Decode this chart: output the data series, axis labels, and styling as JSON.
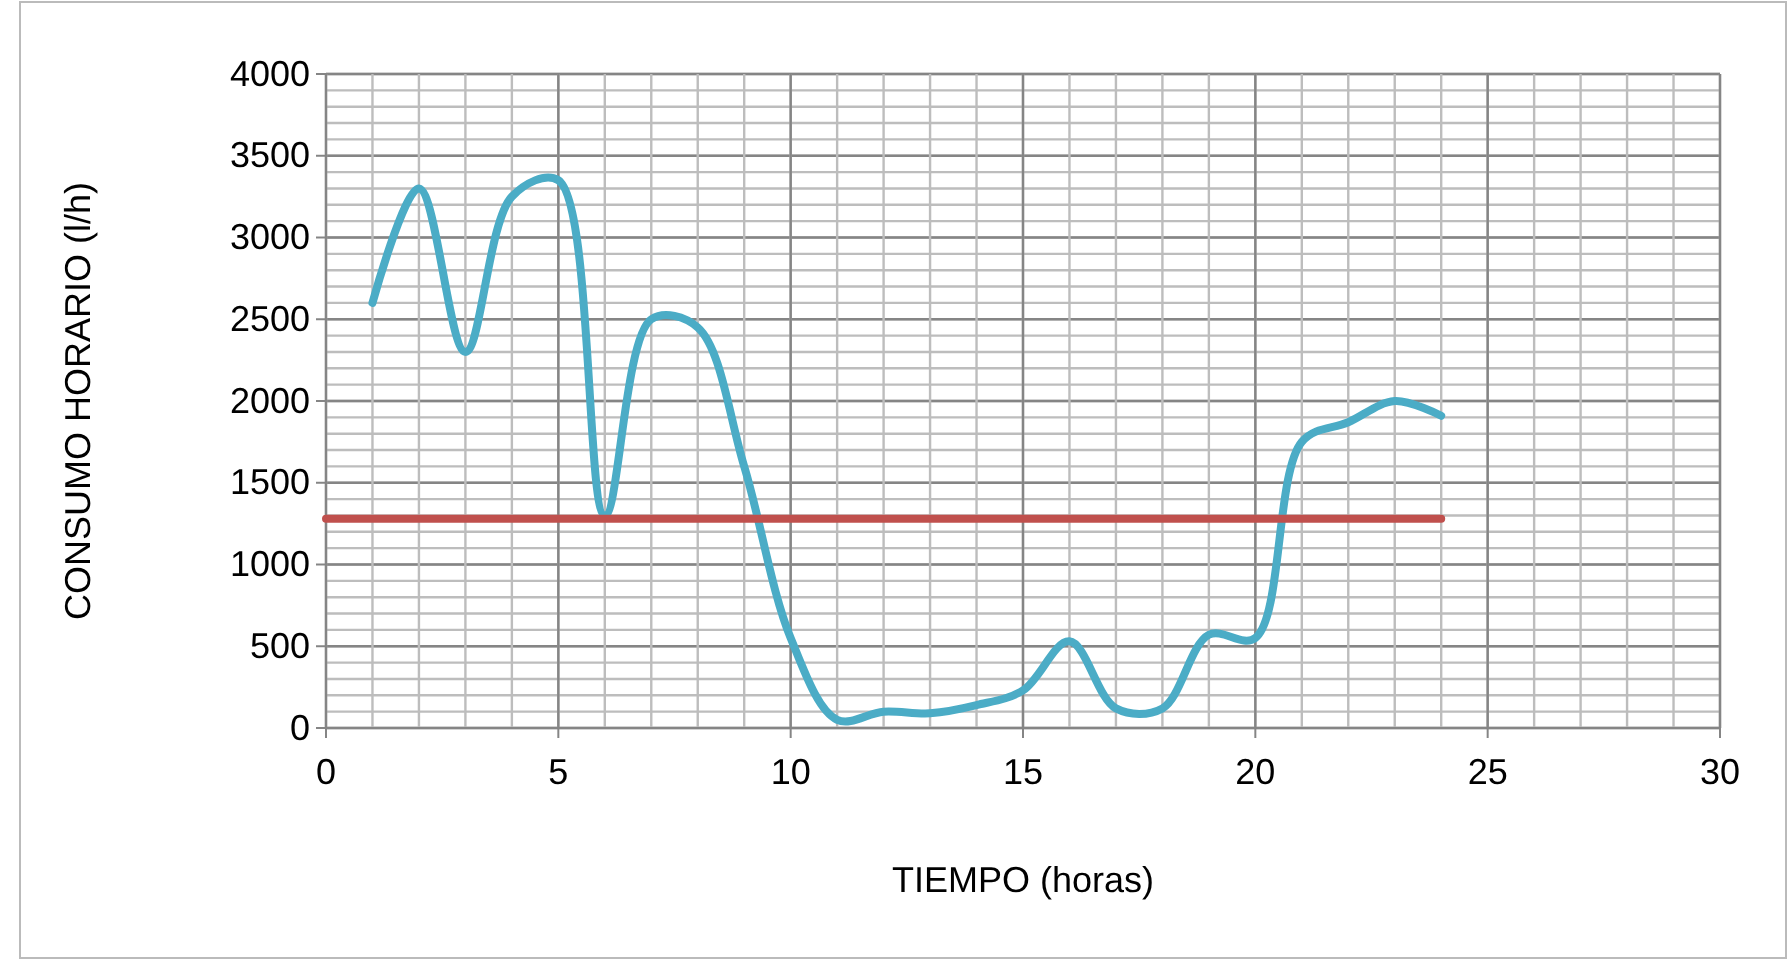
{
  "chart_data": {
    "type": "line",
    "xlabel": "TIEMPO (horas)",
    "ylabel": "CONSUMO HORARIO (l/h)",
    "xlim": [
      0,
      30
    ],
    "xticks": [
      0,
      5,
      10,
      15,
      20,
      25,
      30
    ],
    "ylim": [
      0,
      4000
    ],
    "yticks": [
      0,
      500,
      1000,
      1500,
      2000,
      2500,
      3000,
      3500,
      4000
    ],
    "grid": true,
    "marker": "none",
    "line_style": "solid",
    "series": [
      {
        "color": "#4bacc6",
        "x": [
          1,
          2,
          3,
          4,
          5,
          6,
          7,
          8,
          9,
          10,
          11,
          12,
          13,
          14,
          15,
          16,
          17,
          18,
          19,
          20,
          21,
          22,
          23,
          24
        ],
        "values": [
          2600,
          3300,
          2300,
          3250,
          3350,
          1300,
          2500,
          2450,
          1600,
          550,
          50,
          100,
          90,
          140,
          230,
          530,
          120,
          120,
          570,
          550,
          1750,
          1870,
          2000,
          1910
        ]
      },
      {
        "color": "#c0504d",
        "x": [
          0,
          24
        ],
        "values": [
          1280,
          1280
        ]
      }
    ]
  }
}
